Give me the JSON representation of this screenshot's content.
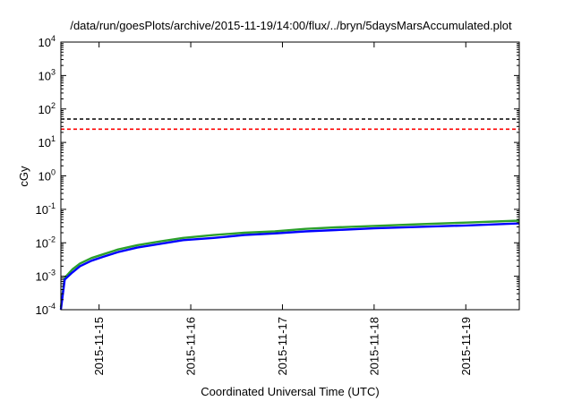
{
  "chart_data": {
    "type": "line",
    "title": "/data/run/goesPlots/archive/2015-11-19/14:00/flux/../bryn/5daysMarsAccumulated.plot",
    "xlabel": "Coordinated Universal Time (UTC)",
    "ylabel": "cGy",
    "x_type": "datetime",
    "xlim": [
      "2015-11-14T14:00",
      "2015-11-19T14:00"
    ],
    "x_ticks": [
      "2015-11-15",
      "2015-11-16",
      "2015-11-17",
      "2015-11-18",
      "2015-11-19"
    ],
    "y_scale": "log",
    "ylim": [
      0.0001,
      10000
    ],
    "y_ticks": [
      {
        "base": "10",
        "exp": "-4",
        "value": 0.0001
      },
      {
        "base": "10",
        "exp": "-3",
        "value": 0.001
      },
      {
        "base": "10",
        "exp": "-2",
        "value": 0.01
      },
      {
        "base": "10",
        "exp": "-1",
        "value": 0.1
      },
      {
        "base": "10",
        "exp": "0",
        "value": 1
      },
      {
        "base": "10",
        "exp": "1",
        "value": 10
      },
      {
        "base": "10",
        "exp": "2",
        "value": 100
      },
      {
        "base": "10",
        "exp": "3",
        "value": 1000
      },
      {
        "base": "10",
        "exp": "4",
        "value": 10000
      }
    ],
    "grid": false,
    "legend": "none",
    "series": [
      {
        "color": "#2ca02c",
        "style": "solid",
        "points": [
          [
            "2015-11-14T14:00",
            0.00012
          ],
          [
            "2015-11-14T15:00",
            0.0009
          ],
          [
            "2015-11-14T17:00",
            0.0016
          ],
          [
            "2015-11-14T19:00",
            0.0024
          ],
          [
            "2015-11-14T22:00",
            0.0035
          ],
          [
            "2015-11-15T01:00",
            0.0045
          ],
          [
            "2015-11-15T05:00",
            0.0063
          ],
          [
            "2015-11-15T10:00",
            0.0085
          ],
          [
            "2015-11-15T16:00",
            0.011
          ],
          [
            "2015-11-15T22:00",
            0.014
          ],
          [
            "2015-11-16T06:00",
            0.017
          ],
          [
            "2015-11-16T14:00",
            0.02
          ],
          [
            "2015-11-16T22:00",
            0.022
          ],
          [
            "2015-11-17T06:00",
            0.026
          ],
          [
            "2015-11-17T14:00",
            0.029
          ],
          [
            "2015-11-18T00:00",
            0.032
          ],
          [
            "2015-11-18T12:00",
            0.036
          ],
          [
            "2015-11-19T00:00",
            0.04
          ],
          [
            "2015-11-19T14:00",
            0.046
          ]
        ]
      },
      {
        "color": "#0000ff",
        "style": "solid",
        "points": [
          [
            "2015-11-14T14:00",
            0.0001
          ],
          [
            "2015-11-14T15:00",
            0.0008
          ],
          [
            "2015-11-14T17:00",
            0.0013
          ],
          [
            "2015-11-14T19:00",
            0.002
          ],
          [
            "2015-11-14T22:00",
            0.0029
          ],
          [
            "2015-11-15T01:00",
            0.0038
          ],
          [
            "2015-11-15T05:00",
            0.0053
          ],
          [
            "2015-11-15T10:00",
            0.0072
          ],
          [
            "2015-11-15T16:00",
            0.0093
          ],
          [
            "2015-11-15T22:00",
            0.012
          ],
          [
            "2015-11-16T06:00",
            0.014
          ],
          [
            "2015-11-16T14:00",
            0.017
          ],
          [
            "2015-11-16T22:00",
            0.019
          ],
          [
            "2015-11-17T06:00",
            0.022
          ],
          [
            "2015-11-17T14:00",
            0.024
          ],
          [
            "2015-11-18T00:00",
            0.027
          ],
          [
            "2015-11-18T12:00",
            0.03
          ],
          [
            "2015-11-19T00:00",
            0.033
          ],
          [
            "2015-11-19T14:00",
            0.038
          ]
        ]
      },
      {
        "color": "#000000",
        "style": "dashed",
        "points": [
          [
            "2015-11-14T14:00",
            50
          ],
          [
            "2015-11-19T14:00",
            50
          ]
        ]
      },
      {
        "color": "#ff0000",
        "style": "dashed",
        "points": [
          [
            "2015-11-14T14:00",
            25
          ],
          [
            "2015-11-19T14:00",
            25
          ]
        ]
      }
    ]
  }
}
